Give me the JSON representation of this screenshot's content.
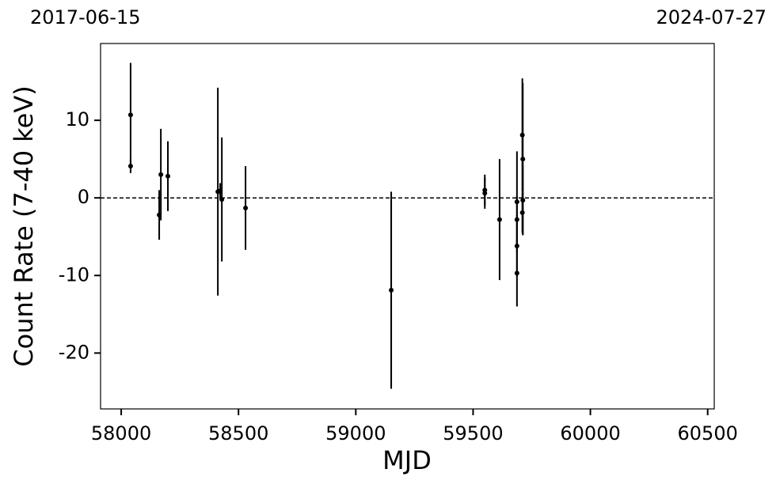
{
  "chart_data": {
    "type": "errorbar",
    "top_left_label": "2017-06-15",
    "top_right_label": "2024-07-27",
    "x_label": "MJD",
    "y_label": "Count Rate (7-40 keV)",
    "x": [
      58040,
      58040,
      58162,
      58169,
      58199,
      58412,
      58422,
      58429,
      58530,
      59151,
      59550,
      59550,
      59613,
      59687,
      59687,
      59687,
      59687,
      59710,
      59710,
      59712,
      59712
    ],
    "values": [
      10.7,
      4.1,
      -2.2,
      3.0,
      2.8,
      0.8,
      0.9,
      -0.2,
      -1.3,
      -11.9,
      1.0,
      0.6,
      -2.8,
      -0.5,
      -2.8,
      -6.2,
      -9.7,
      8.1,
      -1.9,
      5.0,
      -0.3
    ],
    "errors": [
      6.7,
      0.9,
      3.2,
      5.9,
      4.5,
      13.4,
      1.0,
      8.0,
      5.4,
      12.7,
      2.0,
      2.0,
      7.8,
      6.5,
      3.0,
      4.0,
      4.3,
      7.3,
      2.6,
      9.8,
      4.5
    ],
    "color": "#000000",
    "reference_line": 0,
    "xlim": [
      57912,
      60528
    ],
    "ylim": [
      -27.2,
      19.9
    ],
    "xticks": [
      58000,
      58500,
      59000,
      59500,
      60000,
      60500
    ],
    "yticks": [
      -20,
      -10,
      0,
      10
    ]
  }
}
